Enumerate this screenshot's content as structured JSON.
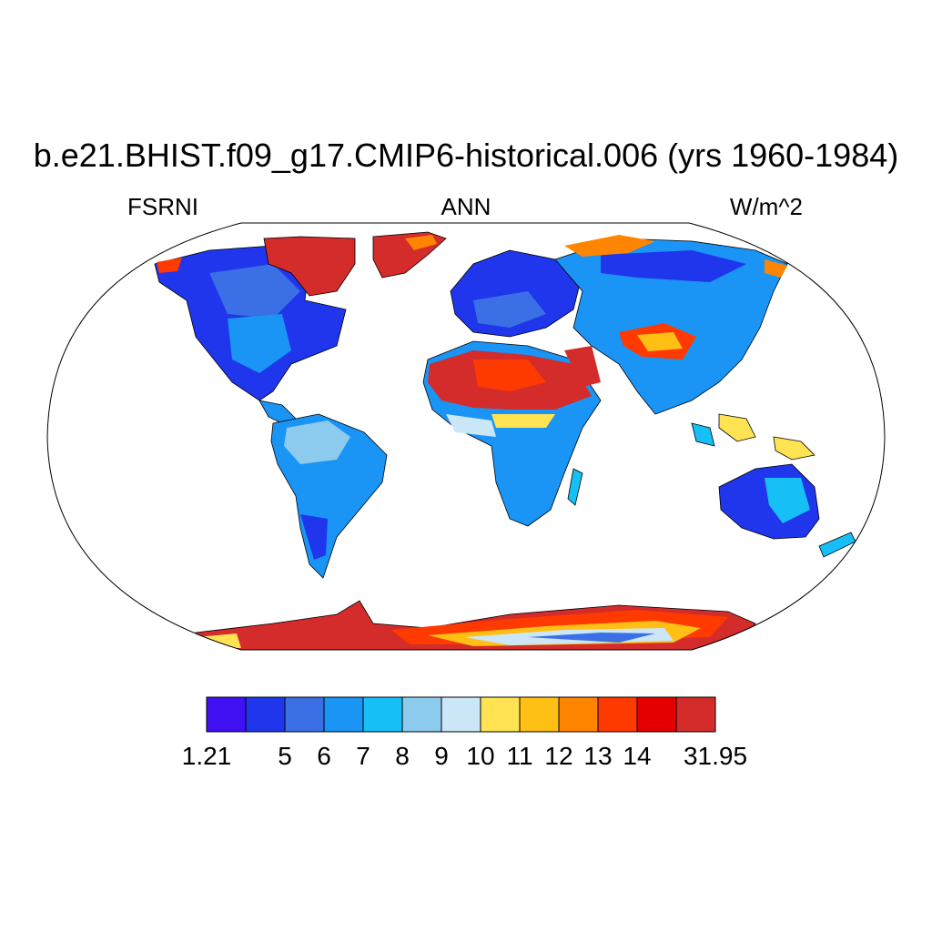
{
  "title": "b.e21.BHIST.f09_g17.CMIP6-historical.006 (yrs 1960-1984)",
  "left_label": "FSRNI",
  "center_label": "ANN",
  "right_label": "W/m^2",
  "colorbar": {
    "colors": [
      "#3f10f2",
      "#1f36ec",
      "#3a6fe6",
      "#1a95f5",
      "#16bff6",
      "#8ccbee",
      "#cbe6f6",
      "#ffe352",
      "#ffbf14",
      "#ff8500",
      "#ff3a00",
      "#e50000",
      "#d42b2b"
    ],
    "labels": [
      "1.21",
      "5",
      "6",
      "7",
      "8",
      "9",
      "10",
      "11",
      "12",
      "13",
      "14",
      "31.95"
    ],
    "boundary_index": [
      0,
      2,
      3,
      4,
      5,
      6,
      7,
      8,
      9,
      10,
      11,
      13
    ]
  },
  "map": {
    "projection": "Robinson",
    "ocean_color": "#ffffff",
    "outline_color": "#000000"
  }
}
